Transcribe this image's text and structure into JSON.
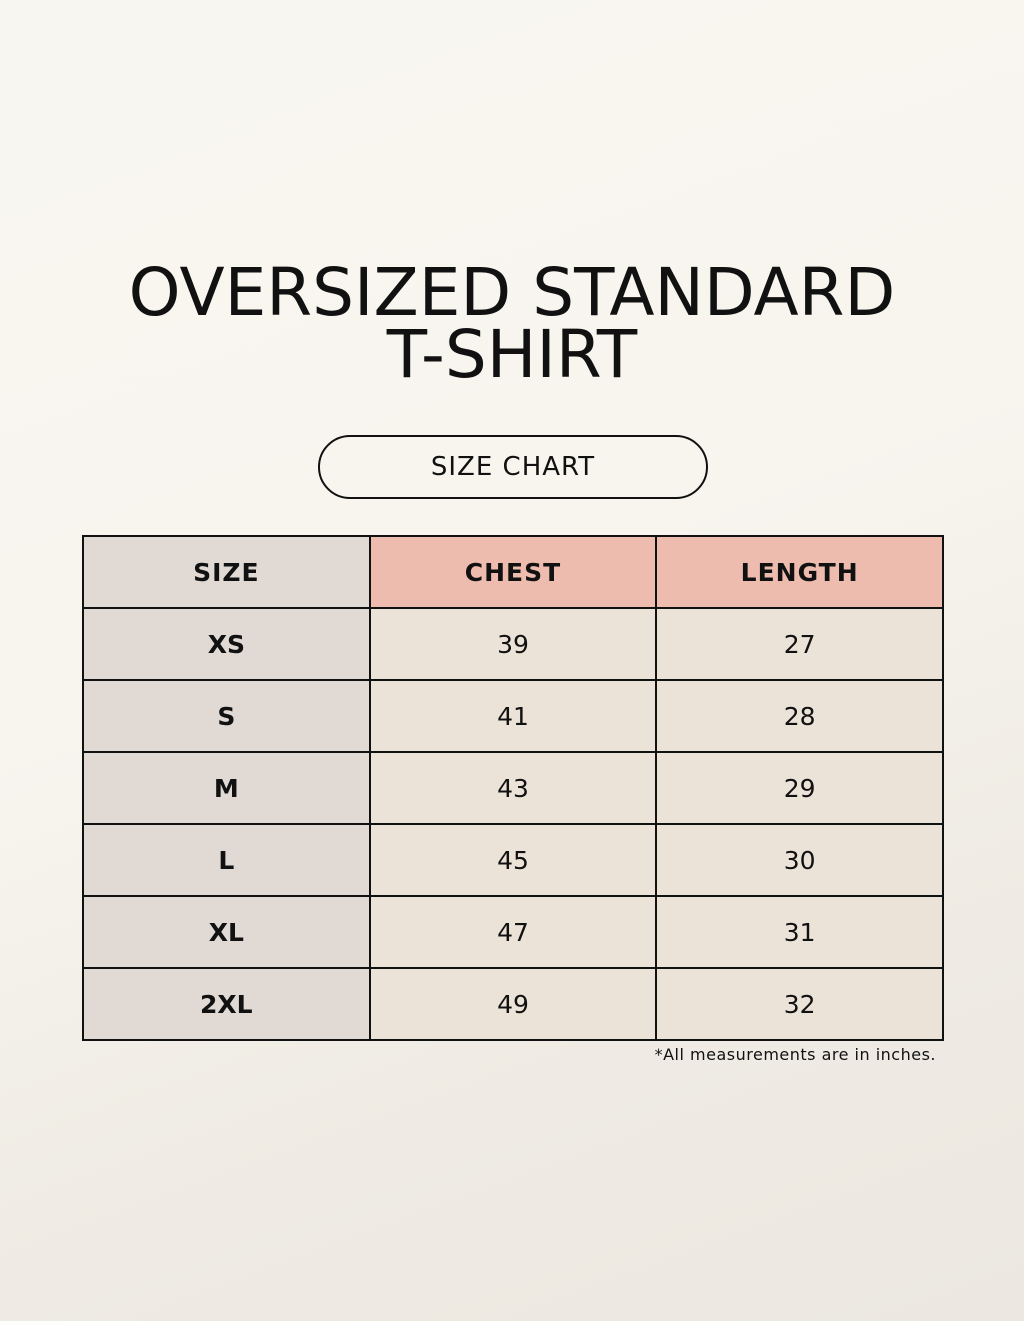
{
  "title": {
    "line1": "OVERSIZED STANDARD",
    "line2": "T-SHIRT"
  },
  "subtitle": "SIZE CHART",
  "table": {
    "headers": [
      "SIZE",
      "CHEST",
      "LENGTH"
    ],
    "rows": [
      [
        "XS",
        "39",
        "27"
      ],
      [
        "S",
        "41",
        "28"
      ],
      [
        "M",
        "43",
        "29"
      ],
      [
        "L",
        "45",
        "30"
      ],
      [
        "XL",
        "47",
        "31"
      ],
      [
        "2XL",
        "49",
        "32"
      ]
    ]
  },
  "note": "*All measurements are in inches.",
  "colors": {
    "size_column": "#e0d9d4",
    "header_accent": "#eebcaf",
    "cell": "#ebe3d8"
  }
}
